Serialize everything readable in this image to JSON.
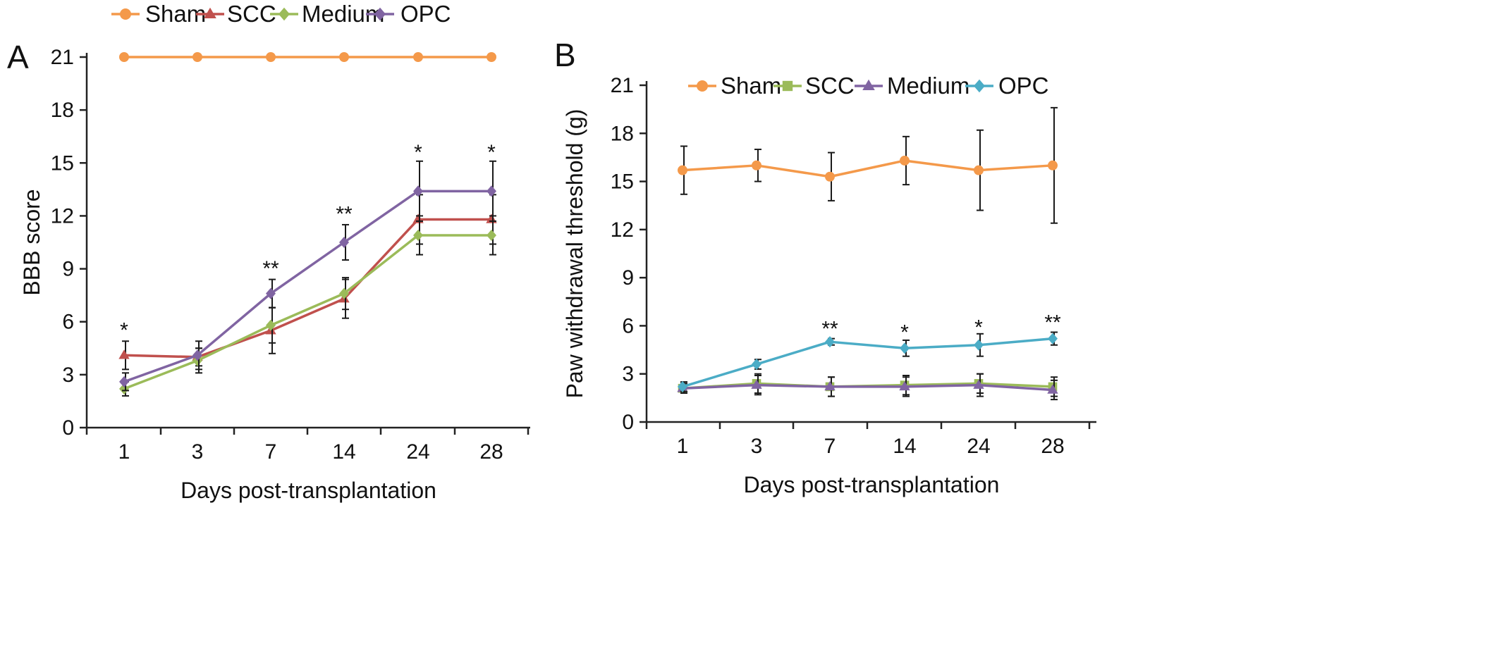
{
  "figure": {
    "panel_a_letter": "A",
    "panel_b_letter": "B"
  },
  "chart_data": [
    {
      "panel": "A",
      "type": "line",
      "title": "",
      "xlabel": "Days post-transplantation",
      "ylabel": "BBB score",
      "categories": [
        "1",
        "3",
        "7",
        "14",
        "24",
        "28"
      ],
      "ylim": [
        0,
        21
      ],
      "yticks": [
        0,
        3,
        6,
        9,
        12,
        15,
        18,
        21
      ],
      "grid": false,
      "legend_position": "top",
      "series": [
        {
          "name": "Sham",
          "color": "#F4994A",
          "marker": "circle",
          "values": [
            21,
            21,
            21,
            21,
            21,
            21
          ],
          "errors": [
            0,
            0,
            0,
            0,
            0,
            0
          ]
        },
        {
          "name": "SCC",
          "color": "#C0504D",
          "marker": "triangle",
          "values": [
            4.1,
            4.0,
            5.5,
            7.3,
            11.8,
            11.8
          ],
          "errors": [
            0.8,
            0.5,
            1.3,
            1.1,
            1.4,
            1.4
          ]
        },
        {
          "name": "Medium",
          "color": "#9BBB59",
          "marker": "diamond",
          "values": [
            2.2,
            3.8,
            5.8,
            7.6,
            10.9,
            10.9
          ],
          "errors": [
            0.4,
            0.7,
            1.0,
            0.9,
            1.1,
            1.1
          ]
        },
        {
          "name": "OPC",
          "color": "#8064A2",
          "marker": "diamond",
          "values": [
            2.6,
            4.1,
            7.6,
            10.5,
            13.4,
            13.4
          ],
          "errors": [
            0.5,
            0.8,
            0.8,
            1.0,
            1.7,
            1.7
          ]
        }
      ],
      "annotations": [
        {
          "category": "1",
          "text": "*",
          "y": 5.6
        },
        {
          "category": "7",
          "text": "**",
          "y": 9.1
        },
        {
          "category": "14",
          "text": "**",
          "y": 12.2
        },
        {
          "category": "24",
          "text": "*",
          "y": 15.7
        },
        {
          "category": "28",
          "text": "*",
          "y": 15.7
        }
      ]
    },
    {
      "panel": "B",
      "type": "line",
      "title": "",
      "xlabel": "Days post-transplantation",
      "ylabel": "Paw withdrawal threshold (g)",
      "categories": [
        "1",
        "3",
        "7",
        "14",
        "24",
        "28"
      ],
      "ylim": [
        0,
        21
      ],
      "yticks": [
        0,
        3,
        6,
        9,
        12,
        15,
        18,
        21
      ],
      "grid": false,
      "legend_position": "top",
      "series": [
        {
          "name": "Sham",
          "color": "#F4994A",
          "marker": "circle",
          "values": [
            15.7,
            16.0,
            15.3,
            16.3,
            15.7,
            16.0
          ],
          "errors": [
            1.5,
            1.0,
            1.5,
            1.5,
            2.5,
            3.6
          ]
        },
        {
          "name": "SCC",
          "color": "#9BBB59",
          "marker": "square",
          "values": [
            2.1,
            2.4,
            2.2,
            2.3,
            2.4,
            2.2
          ],
          "errors": [
            0.3,
            0.6,
            0.6,
            0.6,
            0.6,
            0.6
          ]
        },
        {
          "name": "Medium",
          "color": "#8064A2",
          "marker": "triangle",
          "values": [
            2.1,
            2.3,
            2.2,
            2.2,
            2.3,
            2.0
          ],
          "errors": [
            0.3,
            0.6,
            0.6,
            0.6,
            0.7,
            0.6
          ]
        },
        {
          "name": "OPC",
          "color": "#4BACC6",
          "marker": "diamond",
          "values": [
            2.2,
            3.6,
            5.0,
            4.6,
            4.8,
            5.2
          ],
          "errors": [
            0.3,
            0.3,
            0.2,
            0.5,
            0.7,
            0.4
          ]
        }
      ],
      "annotations": [
        {
          "category": "7",
          "text": "**",
          "y": 5.9
        },
        {
          "category": "14",
          "text": "*",
          "y": 5.7
        },
        {
          "category": "24",
          "text": "*",
          "y": 6.0
        },
        {
          "category": "28",
          "text": "**",
          "y": 6.3
        }
      ]
    }
  ]
}
